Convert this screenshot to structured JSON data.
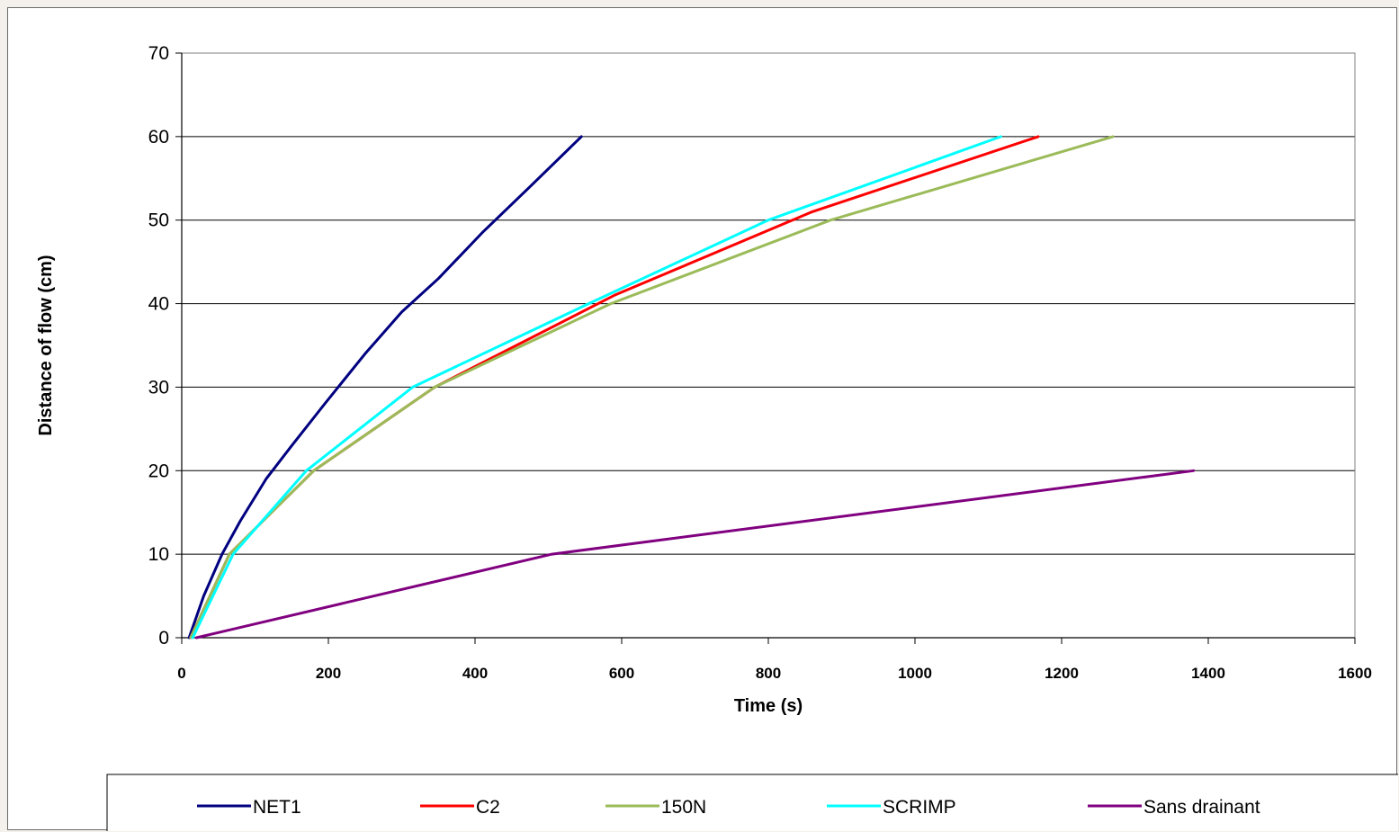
{
  "chart_data": {
    "type": "line",
    "title": "",
    "xlabel": "Time (s)",
    "ylabel": "Distance of flow (cm)",
    "xlim": [
      0,
      1600
    ],
    "ylim": [
      0,
      70
    ],
    "x_ticks": [
      "0",
      "200",
      "400",
      "600",
      "800",
      "1000",
      "1200",
      "1400",
      "1600"
    ],
    "y_ticks": [
      "0",
      "10",
      "20",
      "30",
      "40",
      "50",
      "60",
      "70"
    ],
    "grid": "horizontal major gridlines",
    "legend_position": "bottom",
    "series": [
      {
        "name": "NET1",
        "color": "#000080",
        "x": [
          10,
          30,
          55,
          80,
          115,
          150,
          195,
          250,
          300,
          350,
          410,
          475,
          545
        ],
        "y": [
          0,
          5,
          10,
          14,
          19,
          23,
          28,
          34,
          39,
          43,
          48.5,
          54,
          60
        ]
      },
      {
        "name": "C2",
        "color": "#ff0000",
        "x": [
          12,
          65,
          180,
          345,
          590,
          860,
          1168
        ],
        "y": [
          0,
          10,
          20,
          30,
          41,
          51,
          60
        ]
      },
      {
        "name": "150N",
        "color": "#9bbb59",
        "x": [
          12,
          65,
          180,
          345,
          585,
          885,
          1270
        ],
        "y": [
          0,
          10,
          20,
          30,
          40,
          50,
          60
        ]
      },
      {
        "name": "SCRIMP",
        "color": "#00ffff",
        "x": [
          15,
          70,
          170,
          315,
          555,
          800,
          1117
        ],
        "y": [
          0,
          10,
          20,
          30,
          40,
          50,
          60
        ]
      },
      {
        "name": "Sans drainant",
        "color": "#800080",
        "x": [
          20,
          505,
          1380
        ],
        "y": [
          0,
          10,
          20
        ]
      }
    ]
  }
}
